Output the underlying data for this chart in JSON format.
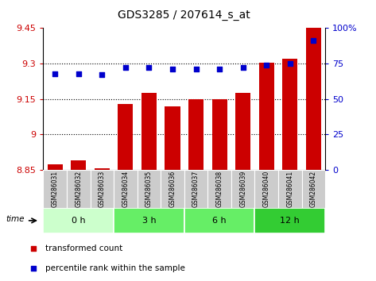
{
  "title": "GDS3285 / 207614_s_at",
  "samples": [
    "GSM286031",
    "GSM286032",
    "GSM286033",
    "GSM286034",
    "GSM286035",
    "GSM286036",
    "GSM286037",
    "GSM286038",
    "GSM286039",
    "GSM286040",
    "GSM286041",
    "GSM286042"
  ],
  "bar_values": [
    8.875,
    8.89,
    8.858,
    9.13,
    9.175,
    9.12,
    9.15,
    9.15,
    9.175,
    9.305,
    9.32,
    9.46
  ],
  "percentile_values": [
    68,
    68,
    67,
    72,
    72,
    71,
    71,
    71,
    72,
    74,
    75,
    91
  ],
  "bar_color": "#cc0000",
  "dot_color": "#0000cc",
  "ylim_left": [
    8.85,
    9.45
  ],
  "ylim_right": [
    0,
    100
  ],
  "yticks_left": [
    8.85,
    9.0,
    9.15,
    9.3,
    9.45
  ],
  "yticks_left_labels": [
    "8.85",
    "9",
    "9.15",
    "9.3",
    "9.45"
  ],
  "yticks_right": [
    0,
    25,
    50,
    75,
    100
  ],
  "yticks_right_labels": [
    "0",
    "25",
    "50",
    "75",
    "100%"
  ],
  "bar_width": 0.65,
  "grid_color": "#000000",
  "group_colors": [
    "#ccffcc",
    "#66ee66",
    "#66ee66",
    "#33cc33"
  ],
  "group_labels": [
    "0 h",
    "3 h",
    "6 h",
    "12 h"
  ],
  "group_starts": [
    -0.5,
    2.5,
    5.5,
    8.5
  ],
  "group_ends": [
    2.5,
    5.5,
    8.5,
    11.5
  ],
  "axis_color_left": "#cc0000",
  "axis_color_right": "#0000cc",
  "sample_box_color": "#cccccc",
  "legend_bar_color": "#cc0000",
  "legend_dot_color": "#0000cc"
}
